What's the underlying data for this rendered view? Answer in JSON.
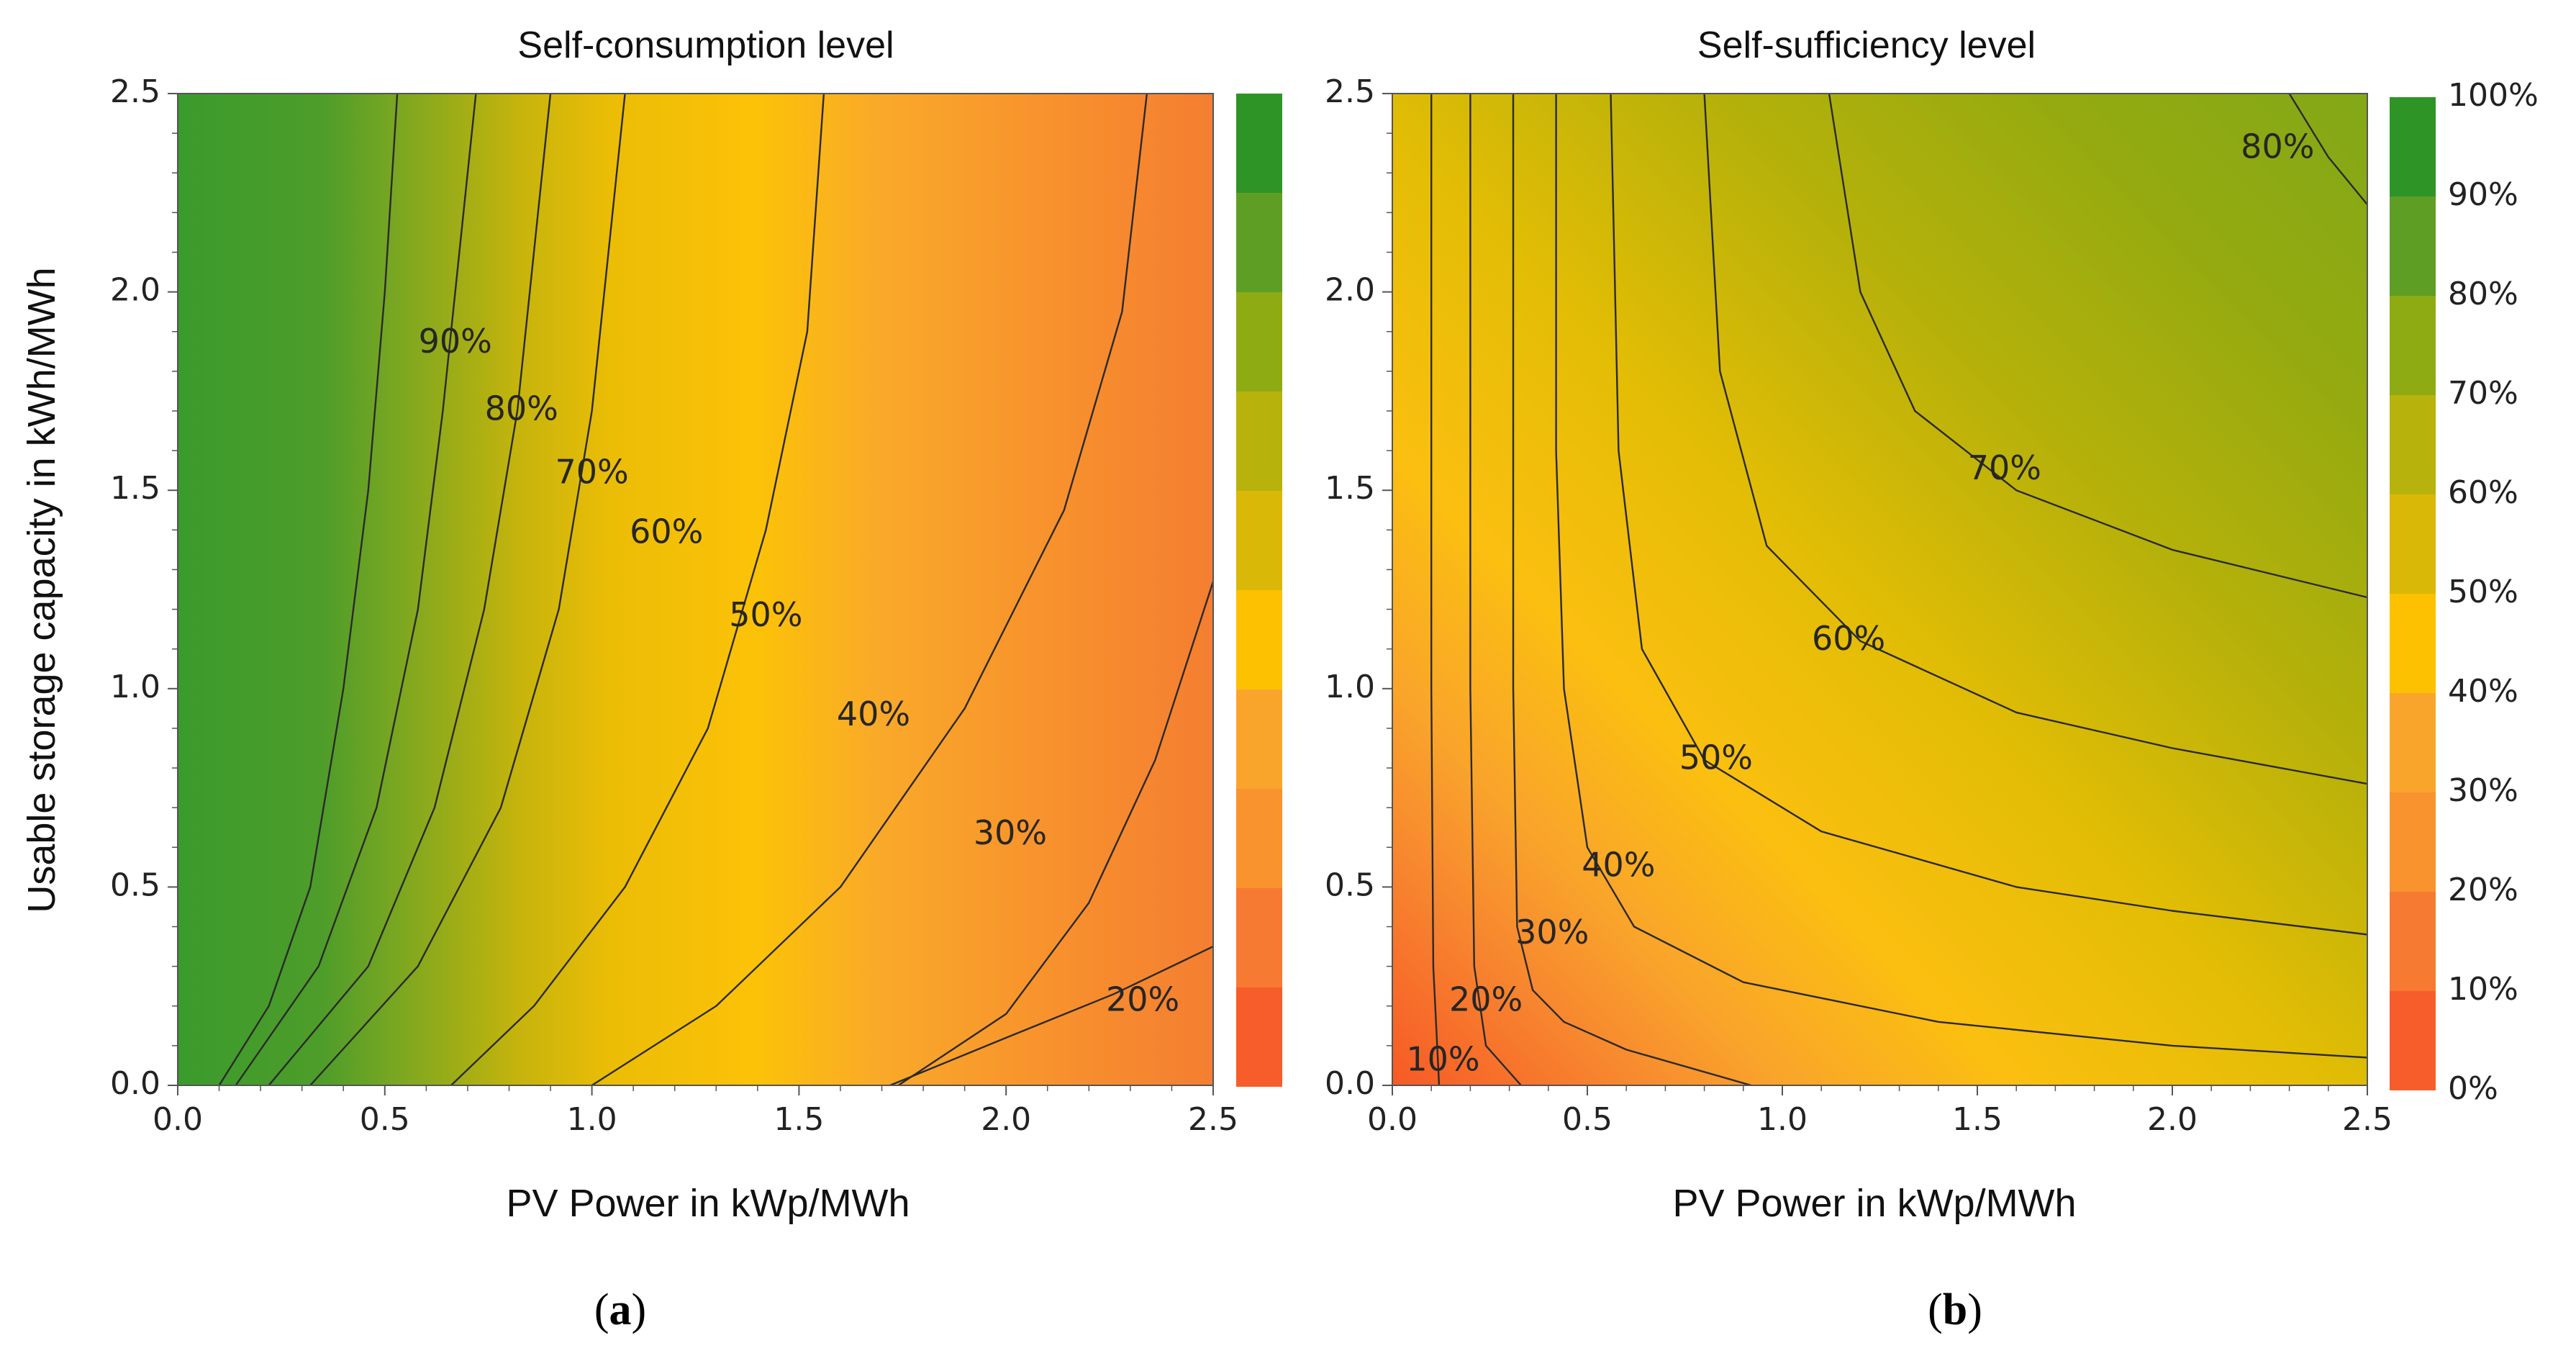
{
  "chart_data": [
    {
      "type": "contour",
      "panel_label": "a",
      "title": "Self-consumption level",
      "xlabel": "PV Power in kWp/MWh",
      "ylabel": "Usable storage capacity in kWh/MWh",
      "xlim": [
        0,
        2.5
      ],
      "ylim": [
        0,
        2.5
      ],
      "xticks": [
        "0.0",
        "0.5",
        "1.0",
        "1.5",
        "2.0",
        "2.5"
      ],
      "yticks": [
        "0.0",
        "0.5",
        "1.0",
        "1.5",
        "2.0",
        "2.5"
      ],
      "colorbar_ticks": [],
      "contours": [
        {
          "level": "90%",
          "points": [
            [
              0.1,
              0.0
            ],
            [
              0.22,
              0.2
            ],
            [
              0.32,
              0.5
            ],
            [
              0.4,
              1.0
            ],
            [
              0.46,
              1.5
            ],
            [
              0.5,
              2.0
            ],
            [
              0.53,
              2.5
            ]
          ],
          "label": {
            "text": "90%",
            "x": 0.67,
            "y": 1.87
          }
        },
        {
          "level": "80%",
          "points": [
            [
              0.14,
              0.0
            ],
            [
              0.34,
              0.3
            ],
            [
              0.48,
              0.7
            ],
            [
              0.58,
              1.2
            ],
            [
              0.64,
              1.7
            ],
            [
              0.68,
              2.1
            ],
            [
              0.72,
              2.5
            ]
          ],
          "label": {
            "text": "80%",
            "x": 0.83,
            "y": 1.7
          }
        },
        {
          "level": "70%",
          "points": [
            [
              0.22,
              0.0
            ],
            [
              0.46,
              0.3
            ],
            [
              0.62,
              0.7
            ],
            [
              0.74,
              1.2
            ],
            [
              0.82,
              1.7
            ],
            [
              0.86,
              2.1
            ],
            [
              0.9,
              2.5
            ]
          ],
          "label": {
            "text": "70%",
            "x": 1.0,
            "y": 1.54
          }
        },
        {
          "level": "60%",
          "points": [
            [
              0.32,
              0.0
            ],
            [
              0.58,
              0.3
            ],
            [
              0.78,
              0.7
            ],
            [
              0.92,
              1.2
            ],
            [
              1.0,
              1.7
            ],
            [
              1.04,
              2.1
            ],
            [
              1.08,
              2.5
            ]
          ],
          "label": {
            "text": "60%",
            "x": 1.18,
            "y": 1.39
          }
        },
        {
          "level": "50%",
          "points": [
            [
              0.66,
              0.0
            ],
            [
              0.86,
              0.2
            ],
            [
              1.08,
              0.5
            ],
            [
              1.28,
              0.9
            ],
            [
              1.42,
              1.4
            ],
            [
              1.52,
              1.9
            ],
            [
              1.56,
              2.5
            ]
          ],
          "label": {
            "text": "50%",
            "x": 1.42,
            "y": 1.18
          }
        },
        {
          "level": "40%",
          "points": [
            [
              1.0,
              0.0
            ],
            [
              1.3,
              0.2
            ],
            [
              1.6,
              0.5
            ],
            [
              1.9,
              0.95
            ],
            [
              2.14,
              1.45
            ],
            [
              2.28,
              1.95
            ],
            [
              2.34,
              2.5
            ]
          ],
          "label": {
            "text": "40%",
            "x": 1.68,
            "y": 0.93
          }
        },
        {
          "level": "30%",
          "points": [
            [
              1.74,
              0.0
            ],
            [
              2.0,
              0.18
            ],
            [
              2.2,
              0.46
            ],
            [
              2.36,
              0.82
            ],
            [
              2.5,
              1.27
            ]
          ],
          "label": {
            "text": "30%",
            "x": 2.01,
            "y": 0.63
          }
        },
        {
          "level": "20%",
          "points": [
            [
              1.72,
              0.0
            ],
            [
              2.0,
              0.12
            ],
            [
              2.26,
              0.23
            ],
            [
              2.5,
              0.35
            ]
          ],
          "label": {
            "text": "20%",
            "x": 2.33,
            "y": 0.21
          }
        }
      ]
    },
    {
      "type": "contour",
      "panel_label": "b",
      "title": "Self-sufficiency level",
      "xlabel": "PV Power in kWp/MWh",
      "ylabel": "",
      "xlim": [
        0,
        2.5
      ],
      "ylim": [
        0,
        2.5
      ],
      "xticks": [
        "0.0",
        "0.5",
        "1.0",
        "1.5",
        "2.0",
        "2.5"
      ],
      "yticks": [
        "0.0",
        "0.5",
        "1.0",
        "1.5",
        "2.0",
        "2.5"
      ],
      "colorbar_ticks": [
        "0%",
        "10%",
        "20%",
        "30%",
        "40%",
        "50%",
        "60%",
        "70%",
        "80%",
        "90%",
        "100%"
      ],
      "contours": [
        {
          "level": "10%",
          "points": [
            [
              0.1,
              2.5
            ],
            [
              0.1,
              1.0
            ],
            [
              0.105,
              0.3
            ],
            [
              0.12,
              0.0
            ]
          ],
          "label": {
            "text": "10%",
            "x": 0.13,
            "y": 0.06
          }
        },
        {
          "level": "20%",
          "points": [
            [
              0.2,
              2.5
            ],
            [
              0.2,
              1.0
            ],
            [
              0.21,
              0.3
            ],
            [
              0.24,
              0.1
            ],
            [
              0.33,
              0.0
            ]
          ],
          "label": {
            "text": "20%",
            "x": 0.24,
            "y": 0.21
          }
        },
        {
          "level": "30%",
          "points": [
            [
              0.31,
              2.5
            ],
            [
              0.31,
              1.0
            ],
            [
              0.32,
              0.4
            ],
            [
              0.36,
              0.24
            ],
            [
              0.44,
              0.16
            ],
            [
              0.6,
              0.09
            ],
            [
              0.92,
              0.0
            ]
          ],
          "label": {
            "text": "30%",
            "x": 0.41,
            "y": 0.38
          }
        },
        {
          "level": "40%",
          "points": [
            [
              0.42,
              2.5
            ],
            [
              0.42,
              1.6
            ],
            [
              0.44,
              1.0
            ],
            [
              0.5,
              0.6
            ],
            [
              0.62,
              0.4
            ],
            [
              0.9,
              0.26
            ],
            [
              1.4,
              0.16
            ],
            [
              2.0,
              0.1
            ],
            [
              2.5,
              0.07
            ]
          ],
          "label": {
            "text": "40%",
            "x": 0.58,
            "y": 0.55
          }
        },
        {
          "level": "50%",
          "points": [
            [
              0.56,
              2.5
            ],
            [
              0.58,
              1.6
            ],
            [
              0.64,
              1.1
            ],
            [
              0.8,
              0.82
            ],
            [
              1.1,
              0.64
            ],
            [
              1.6,
              0.5
            ],
            [
              2.0,
              0.44
            ],
            [
              2.5,
              0.38
            ]
          ],
          "label": {
            "text": "50%",
            "x": 0.83,
            "y": 0.82
          }
        },
        {
          "level": "60%",
          "points": [
            [
              0.8,
              2.5
            ],
            [
              0.84,
              1.8
            ],
            [
              0.96,
              1.36
            ],
            [
              1.2,
              1.12
            ],
            [
              1.6,
              0.94
            ],
            [
              2.0,
              0.85
            ],
            [
              2.5,
              0.76
            ]
          ],
          "label": {
            "text": "60%",
            "x": 1.17,
            "y": 1.12
          }
        },
        {
          "level": "70%",
          "points": [
            [
              1.12,
              2.5
            ],
            [
              1.2,
              2.0
            ],
            [
              1.34,
              1.7
            ],
            [
              1.6,
              1.5
            ],
            [
              2.0,
              1.35
            ],
            [
              2.5,
              1.23
            ]
          ],
          "label": {
            "text": "70%",
            "x": 1.57,
            "y": 1.55
          }
        },
        {
          "level": "80%",
          "points": [
            [
              2.3,
              2.5
            ],
            [
              2.4,
              2.34
            ],
            [
              2.5,
              2.22
            ]
          ],
          "label": {
            "text": "80%",
            "x": 2.27,
            "y": 2.36
          }
        }
      ]
    }
  ]
}
